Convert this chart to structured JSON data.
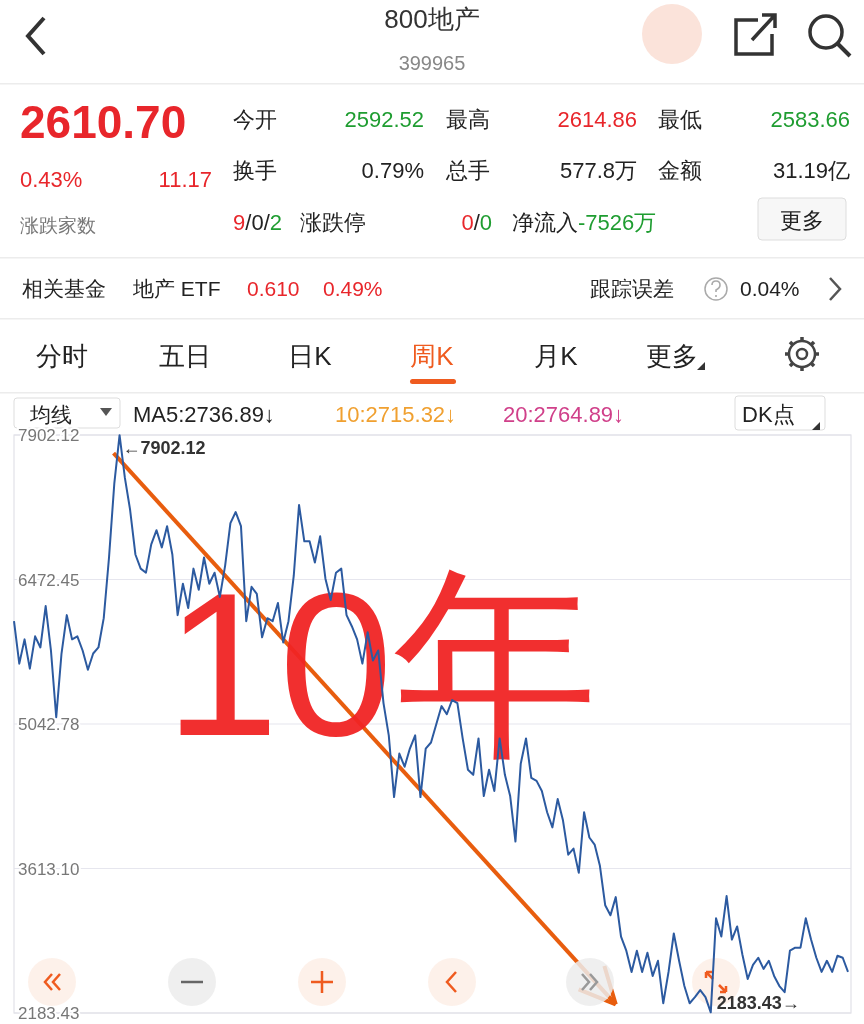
{
  "chart_data": {
    "type": "line",
    "title": "800地产",
    "subtitle": "399965",
    "categories": [
      null,
      null,
      null,
      null,
      null,
      null,
      null,
      null,
      null,
      null,
      null,
      null,
      null,
      null,
      null,
      null,
      null,
      null,
      null,
      null,
      null,
      null,
      null,
      null,
      null,
      null,
      null,
      null,
      null,
      null,
      null,
      null,
      null,
      null,
      null,
      null,
      null,
      null,
      null,
      null,
      null,
      null,
      null,
      null,
      null,
      null,
      null,
      null,
      null,
      null,
      null,
      null,
      null,
      null,
      null,
      null,
      null,
      null,
      null,
      null,
      null,
      null,
      null,
      null,
      null,
      null,
      null,
      null,
      null,
      null,
      null,
      null,
      null,
      null,
      null,
      null,
      null,
      null,
      null,
      null,
      null,
      null,
      null,
      null,
      null,
      null,
      null,
      null,
      null,
      null,
      null,
      null,
      null,
      null,
      null,
      null,
      null,
      null,
      null,
      null,
      null,
      null,
      null,
      null,
      null,
      null,
      null,
      null,
      null,
      null,
      null,
      null,
      null,
      null,
      null,
      null,
      null,
      null,
      null,
      null,
      null,
      null,
      null,
      null,
      null,
      null,
      null,
      null,
      null,
      null,
      null,
      null,
      null,
      null,
      null,
      null,
      null,
      null,
      null,
      null,
      null,
      null,
      null,
      null,
      null,
      null,
      null,
      null,
      null,
      null,
      null,
      null,
      null,
      null,
      null,
      null,
      null,
      null,
      null
    ],
    "values": [
      6060,
      5640,
      5880,
      5590,
      5910,
      5800,
      6210,
      5770,
      5110,
      5740,
      6120,
      5880,
      5910,
      5770,
      5580,
      5740,
      5800,
      6090,
      6690,
      7420,
      7900,
      7480,
      7160,
      6720,
      6580,
      6540,
      6820,
      6960,
      6790,
      7000,
      6720,
      6120,
      6430,
      6190,
      6580,
      6370,
      6690,
      6430,
      6540,
      6300,
      6610,
      7030,
      7140,
      7000,
      6060,
      6400,
      6330,
      5900,
      6090,
      6060,
      6240,
      5850,
      6060,
      6510,
      7210,
      6850,
      6850,
      6640,
      6900,
      6480,
      6270,
      6540,
      6580,
      6120,
      6010,
      5880,
      5640,
      5950,
      5670,
      5770,
      5250,
      4930,
      4320,
      4750,
      4620,
      4800,
      4930,
      4320,
      4800,
      4860,
      5040,
      5220,
      5140,
      5280,
      5250,
      4900,
      4590,
      4540,
      4900,
      4330,
      4590,
      4380,
      4900,
      4540,
      4330,
      3880,
      4650,
      4900,
      4510,
      4480,
      4380,
      4170,
      4020,
      4300,
      4090,
      3750,
      3810,
      3570,
      4170,
      3920,
      3850,
      3640,
      3250,
      3150,
      3330,
      2940,
      2800,
      2590,
      2800,
      2590,
      2780,
      2550,
      2700,
      2280,
      2590,
      2970,
      2700,
      2450,
      2280,
      2340,
      2410,
      2340,
      2190,
      3120,
      2940,
      3340,
      2910,
      3040,
      2760,
      2520,
      2660,
      2730,
      2620,
      2700,
      2550,
      2450,
      2390,
      2800,
      2830,
      2830,
      3120,
      2910,
      2730,
      2590,
      2700,
      2590,
      2750,
      2730,
      2590
    ],
    "color": "#2c5aa0",
    "ylim": [
      2183.43,
      7902.12
    ],
    "yticks": [
      7902.12,
      6472.45,
      5042.78,
      {
        "value": 3613.1,
        "label": "3613.10"
      },
      2183.43
    ],
    "grid": "y",
    "tick_labels": "y",
    "annotations": [
      "2610.70",
      "0.43%",
      "11.17",
      "今开",
      "2592.52",
      "最高",
      "2614.86",
      "最低",
      "2583.66",
      "换手",
      "0.79%",
      "总手",
      "577.8万",
      "金额",
      "31.19亿",
      "涨跌家数",
      "9",
      "/0/",
      "2",
      "涨跌停",
      "0",
      "/",
      "0",
      "净流入",
      "-7526万",
      "更多",
      "相关基金",
      "地产 ETF",
      "0.610",
      "0.49%",
      "跟踪误差",
      "0.04%",
      "分时",
      "五日",
      "日K",
      "周K",
      "月K",
      "更多",
      "均线",
      "MA5:2736.89↓",
      "10:2715.32↓",
      "20:2764.89↓",
      "DK点",
      "10年",
      "←7902.12",
      "2183.43→"
    ]
  }
}
